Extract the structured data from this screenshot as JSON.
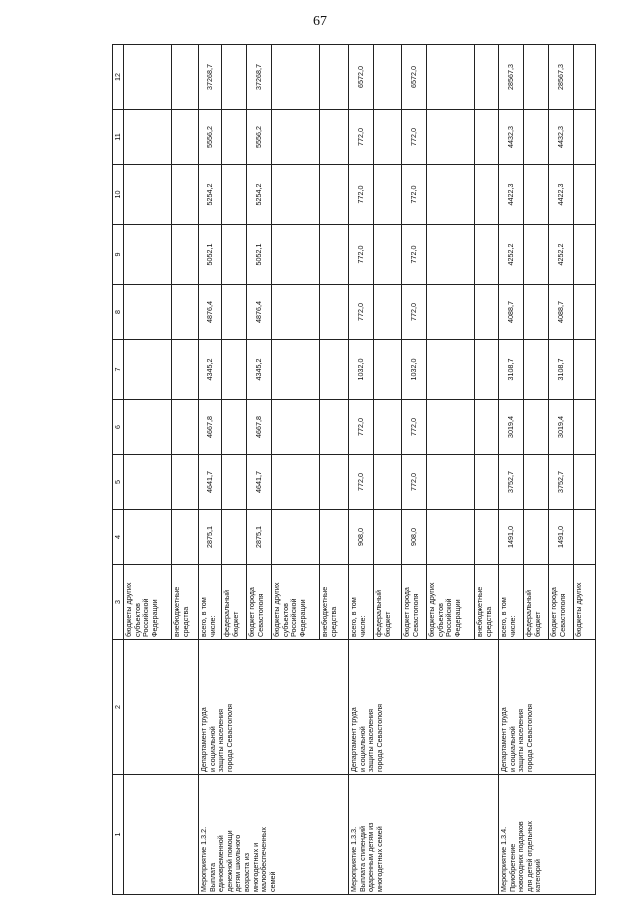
{
  "page_number": "67",
  "header": [
    "1",
    "2",
    "3",
    "4",
    "5",
    "6",
    "7",
    "8",
    "9",
    "10",
    "11",
    "12"
  ],
  "groups": [
    {
      "measure": "",
      "executor": "",
      "rows": [
        {
          "source": "бюджеты других\nсубъектов\nРоссийской\nФедерации",
          "values": [
            "",
            "",
            "",
            "",
            "",
            "",
            "",
            "",
            ""
          ]
        },
        {
          "source": "внебюджетные\nсредства",
          "values": [
            "",
            "",
            "",
            "",
            "",
            "",
            "",
            "",
            ""
          ]
        }
      ]
    },
    {
      "measure": "Мероприятие 1.3.2.\nВыплата\nединовременной\nденежной помощи\nдетям школьного\nвозраста из\nмногодетных и\nмалообеспеченных\nсемей",
      "executor": "Департамент труда\nи социальной\nзащиты населения\nгорода Севастополя",
      "rows": [
        {
          "source": "всего, в том\nчисле:",
          "values": [
            "2875,1",
            "4641,7",
            "4667,8",
            "4345,2",
            "4876,4",
            "5052,1",
            "5254,2",
            "5556,2",
            "37268,7"
          ]
        },
        {
          "source": "федеральный\nбюджет",
          "values": [
            "",
            "",
            "",
            "",
            "",
            "",
            "",
            "",
            ""
          ]
        },
        {
          "source": "бюджет города\nСевастополя",
          "values": [
            "2875,1",
            "4641,7",
            "4667,8",
            "4345,2",
            "4876,4",
            "5052,1",
            "5254,2",
            "5556,2",
            "37268,7"
          ]
        },
        {
          "source": "бюджеты других\nсубъектов\nРоссийской\nФедерации",
          "values": [
            "",
            "",
            "",
            "",
            "",
            "",
            "",
            "",
            ""
          ]
        },
        {
          "source": "внебюджетные\nсредства",
          "values": [
            "",
            "",
            "",
            "",
            "",
            "",
            "",
            "",
            ""
          ]
        }
      ]
    },
    {
      "measure": "Мероприятие 1.3.3.\nВыплата стипендий\nодаренным детям из\nмногодетных семей",
      "executor": "Департамент труда\nи социальной\nзащиты населения\nгорода Севастополя",
      "rows": [
        {
          "source": "всего, в том\nчисле:",
          "values": [
            "908,0",
            "772,0",
            "772,0",
            "1032,0",
            "772,0",
            "772,0",
            "772,0",
            "772,0",
            "6572,0"
          ]
        },
        {
          "source": "федеральный\nбюджет",
          "values": [
            "",
            "",
            "",
            "",
            "",
            "",
            "",
            "",
            ""
          ]
        },
        {
          "source": "бюджет города\nСевастополя",
          "values": [
            "908,0",
            "772,0",
            "772,0",
            "1032,0",
            "772,0",
            "772,0",
            "772,0",
            "772,0",
            "6572,0"
          ]
        },
        {
          "source": "бюджеты других\nсубъектов\nРоссийской\nФедерации",
          "values": [
            "",
            "",
            "",
            "",
            "",
            "",
            "",
            "",
            ""
          ]
        },
        {
          "source": "внебюджетные\nсредства",
          "values": [
            "",
            "",
            "",
            "",
            "",
            "",
            "",
            "",
            ""
          ]
        }
      ]
    },
    {
      "measure": "Мероприятие 1.3.4.\nПриобретение\nновогодних подарков\nдля детей отдельных\nкатегорий",
      "executor": "Департамент труда\nи социальной\nзащиты населения\nгорода Севастополя",
      "rows": [
        {
          "source": "всего, в том\nчисле:",
          "values": [
            "1491,0",
            "3752,7",
            "3019,4",
            "3108,7",
            "4088,7",
            "4252,2",
            "4422,3",
            "4432,3",
            "28567,3"
          ]
        },
        {
          "source": "федеральный\nбюджет",
          "values": [
            "",
            "",
            "",
            "",
            "",
            "",
            "",
            "",
            ""
          ]
        },
        {
          "source": "бюджет города\nСевастополя",
          "values": [
            "1491,0",
            "3752,7",
            "3019,4",
            "3108,7",
            "4088,7",
            "4252,2",
            "4422,3",
            "4432,3",
            "28567,3"
          ]
        },
        {
          "source": "бюджеты других",
          "values": [
            "",
            "",
            "",
            "",
            "",
            "",
            "",
            "",
            ""
          ]
        }
      ]
    }
  ]
}
